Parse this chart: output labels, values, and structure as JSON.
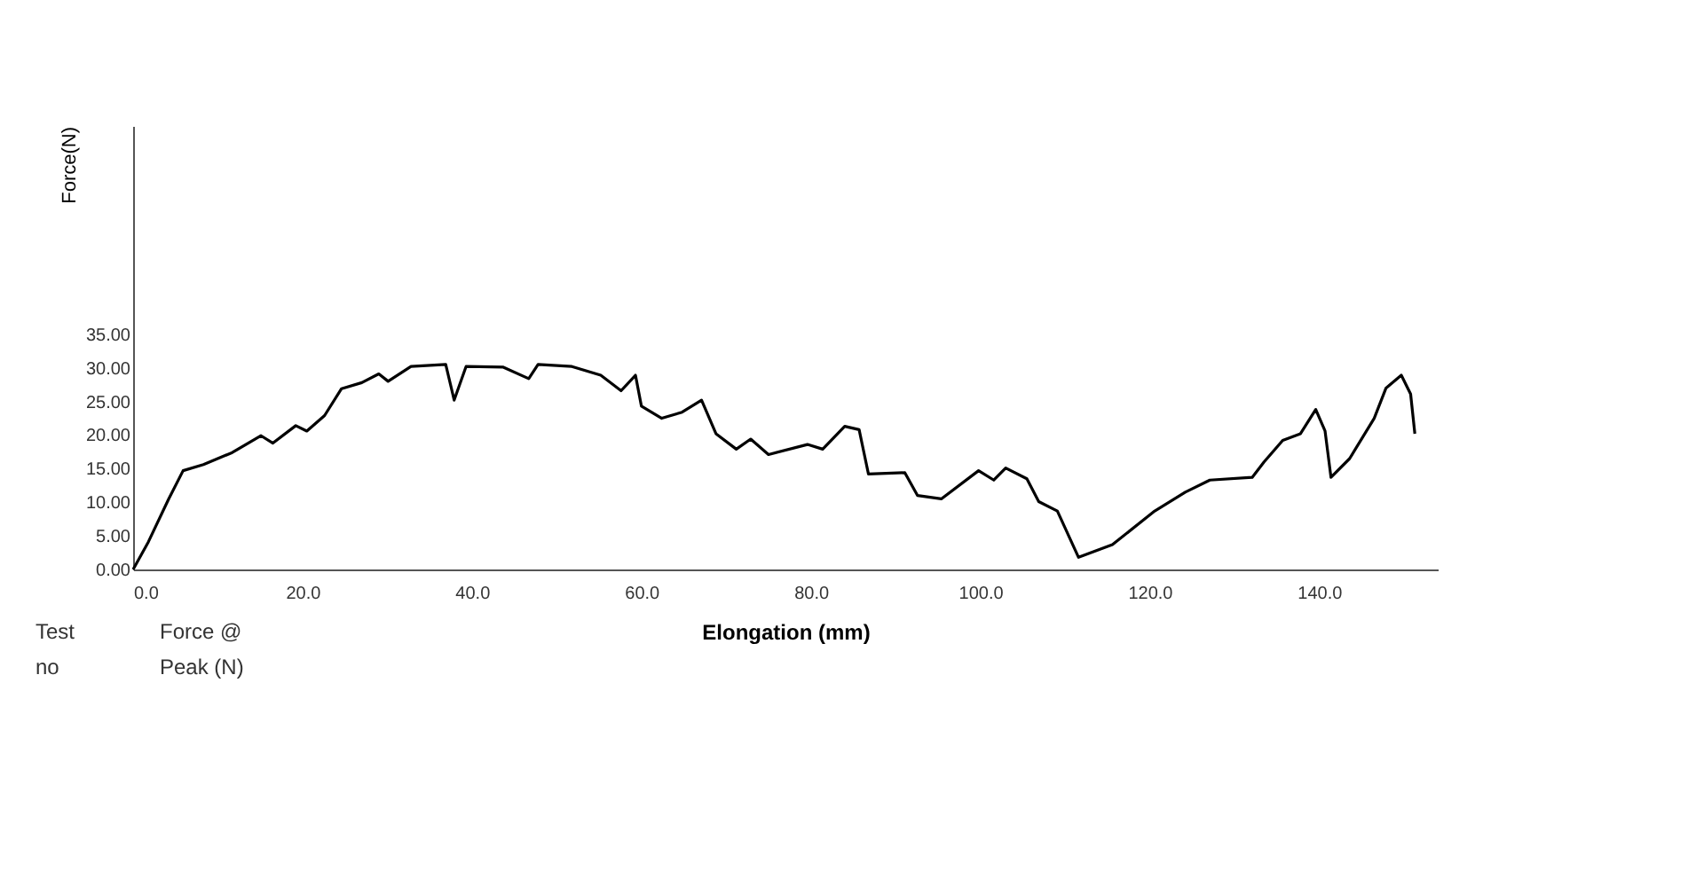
{
  "chart_data": {
    "type": "line",
    "xlabel": "Elongation (mm)",
    "ylabel": "Force(N)",
    "annotations": [
      "Test\nno",
      "Force @\nPeak (N)"
    ],
    "xlim": [
      0,
      154
    ],
    "ylim": [
      0,
      66
    ],
    "xticks": [
      {
        "value": 0,
        "label": "0.0"
      },
      {
        "value": 20,
        "label": "20.0"
      },
      {
        "value": 40,
        "label": "40.0"
      },
      {
        "value": 60,
        "label": "60.0"
      },
      {
        "value": 80,
        "label": "80.0"
      },
      {
        "value": 100,
        "label": "100.0"
      },
      {
        "value": 120,
        "label": "120.0"
      },
      {
        "value": 140,
        "label": "140.0"
      }
    ],
    "yticks": [
      {
        "value": 0,
        "label": "0.00"
      },
      {
        "value": 5,
        "label": "5.00"
      },
      {
        "value": 10,
        "label": "10.00"
      },
      {
        "value": 15,
        "label": "15.00"
      },
      {
        "value": 20,
        "label": "20.00"
      },
      {
        "value": 25,
        "label": "25.00"
      },
      {
        "value": 30,
        "label": "30.00"
      },
      {
        "value": 35,
        "label": "35.00"
      }
    ],
    "grid": false,
    "legend": false,
    "marker": "none",
    "line_style": "solid",
    "series": [
      {
        "color": "#000000",
        "x": [
          0,
          1.8,
          4.2,
          5.9,
          8.3,
          11.7,
          15.1,
          16.5,
          19.2,
          20.5,
          22.6,
          24.6,
          27,
          29,
          30.1,
          32.8,
          36.9,
          37.9,
          39.3,
          43.7,
          46.7,
          47.8,
          51.8,
          55.2,
          57.6,
          59.3,
          60,
          62.4,
          64.8,
          67.1,
          68.8,
          71.2,
          72.9,
          75,
          79.6,
          81.4,
          84,
          85.7,
          86.8,
          91.1,
          92.6,
          95.4,
          99.8,
          101.6,
          103,
          105.5,
          106.9,
          109.1,
          111.6,
          115.6,
          120.6,
          124.2,
          127.1,
          132.1,
          133.5,
          135.7,
          137.8,
          139.6,
          140.7,
          141.4,
          143.6,
          146.5,
          147.9,
          149.7,
          150.8,
          151.3
        ],
        "values": [
          0,
          4.1,
          10.5,
          14.7,
          15.6,
          17.4,
          19.9,
          18.8,
          21.4,
          20.6,
          22.9,
          26.9,
          27.8,
          29.1,
          28,
          30.2,
          30.5,
          25.2,
          30.2,
          30.1,
          28.4,
          30.5,
          30.2,
          28.9,
          26.6,
          28.9,
          24.3,
          22.5,
          23.4,
          25.2,
          20.2,
          17.9,
          19.4,
          17.1,
          18.6,
          17.9,
          21.3,
          20.8,
          14.2,
          14.4,
          11,
          10.5,
          14.7,
          13.3,
          15.1,
          13.5,
          10.1,
          8.7,
          1.8,
          3.7,
          8.7,
          11.5,
          13.3,
          13.7,
          16,
          19.2,
          20.2,
          23.8,
          20.6,
          13.7,
          16.5,
          22.5,
          27,
          28.9,
          26.1,
          20.2
        ]
      }
    ]
  }
}
